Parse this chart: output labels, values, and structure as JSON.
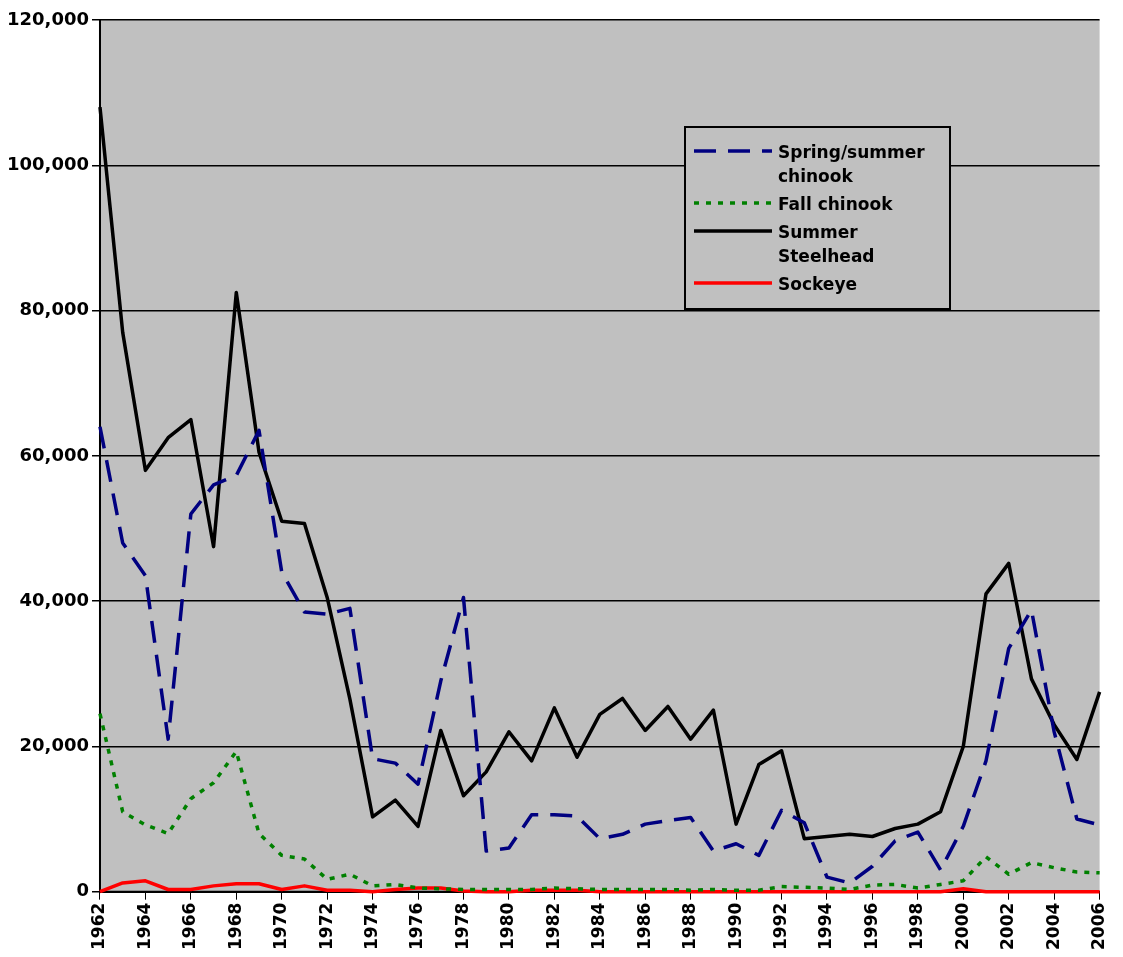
{
  "chart_data": {
    "type": "line",
    "x": [
      1962,
      1963,
      1964,
      1965,
      1966,
      1967,
      1968,
      1969,
      1970,
      1971,
      1972,
      1973,
      1974,
      1975,
      1976,
      1977,
      1978,
      1979,
      1980,
      1981,
      1982,
      1983,
      1984,
      1985,
      1986,
      1987,
      1988,
      1989,
      1990,
      1991,
      1992,
      1993,
      1994,
      1995,
      1996,
      1997,
      1998,
      1999,
      2000,
      2001,
      2002,
      2003,
      2004,
      2005,
      2006
    ],
    "xlim": [
      1962,
      2006
    ],
    "xticks": [
      1962,
      1964,
      1966,
      1968,
      1970,
      1972,
      1974,
      1976,
      1978,
      1980,
      1982,
      1984,
      1986,
      1988,
      1990,
      1992,
      1994,
      1996,
      1998,
      2000,
      2002,
      2004,
      2006
    ],
    "ylim": [
      0,
      120000
    ],
    "yticks": [
      {
        "value": 0,
        "label": "0"
      },
      {
        "value": 20000,
        "label": "20,000"
      },
      {
        "value": 40000,
        "label": "40,000"
      },
      {
        "value": 60000,
        "label": "60,000"
      },
      {
        "value": 80000,
        "label": "80,000"
      },
      {
        "value": 100000,
        "label": "100,000"
      },
      {
        "value": 120000,
        "label": "120,000"
      }
    ],
    "grid": "y",
    "legend": "top right",
    "marker": "none",
    "series": [
      {
        "name": "Spring/summer chinook",
        "color": "#000080",
        "line_style": "dashed",
        "values": [
          64000,
          48000,
          43500,
          21000,
          52000,
          56000,
          57300,
          63500,
          44000,
          38500,
          38200,
          39000,
          18300,
          17700,
          14800,
          29000,
          40500,
          5600,
          6000,
          10600,
          10600,
          10400,
          7300,
          7900,
          9300,
          9800,
          10200,
          5600,
          6600,
          5000,
          11200,
          9500,
          2000,
          1200,
          3500,
          7000,
          8200,
          3000,
          9000,
          18000,
          33500,
          38800,
          22000,
          10000,
          9200
        ]
      },
      {
        "name": "Fall chinook",
        "color": "#008000",
        "line_style": "dotted",
        "values": [
          24500,
          11000,
          9200,
          8000,
          12800,
          15000,
          19300,
          8000,
          5000,
          4500,
          1700,
          2400,
          800,
          1000,
          500,
          400,
          300,
          300,
          300,
          300,
          500,
          400,
          300,
          300,
          300,
          300,
          200,
          300,
          200,
          200,
          700,
          600,
          500,
          300,
          900,
          1000,
          500,
          1000,
          1500,
          4800,
          2400,
          4000,
          3300,
          2700,
          2600
        ]
      },
      {
        "name": "Summer Steelhead",
        "color": "#000000",
        "line_style": "solid",
        "values": [
          108000,
          77000,
          58000,
          62500,
          65000,
          47500,
          82500,
          60500,
          51000,
          50700,
          40500,
          26500,
          10300,
          12600,
          9000,
          22200,
          13200,
          16500,
          22000,
          18000,
          25300,
          18500,
          24400,
          26600,
          22200,
          25500,
          21000,
          25000,
          9300,
          17500,
          19400,
          7300,
          7600,
          7900,
          7600,
          8700,
          9300,
          11000,
          20000,
          41000,
          45200,
          29300,
          23000,
          18200,
          27500
        ]
      },
      {
        "name": "Sockeye",
        "color": "#ff0000",
        "line_style": "solid",
        "values": [
          0,
          1200,
          1500,
          300,
          300,
          800,
          1100,
          1100,
          300,
          800,
          200,
          200,
          0,
          300,
          500,
          500,
          100,
          0,
          0,
          200,
          200,
          200,
          0,
          0,
          0,
          0,
          0,
          0,
          0,
          0,
          0,
          0,
          0,
          0,
          0,
          0,
          0,
          0,
          400,
          0,
          0,
          0,
          0,
          0,
          0
        ]
      }
    ]
  }
}
